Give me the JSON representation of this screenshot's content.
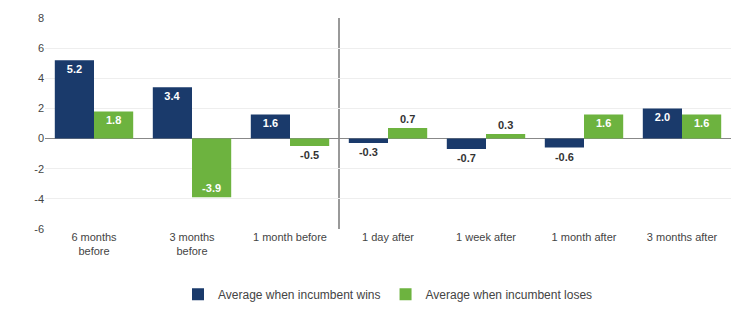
{
  "chart_data": {
    "type": "bar",
    "categories": [
      "6 months\nbefore",
      "3 months\nbefore",
      "1 month before",
      "1 day after",
      "1 week after",
      "1 month after",
      "3 months after"
    ],
    "series": [
      {
        "name": "Average when incumbent wins",
        "color": "#1a3a6b",
        "values": [
          5.2,
          3.4,
          1.6,
          -0.3,
          -0.7,
          -0.6,
          2.0
        ],
        "value_labels": [
          "5.2",
          "3.4",
          "1.6",
          "-0.3",
          "-0.7",
          "-0.6",
          "2.0"
        ]
      },
      {
        "name": "Average when incumbent loses",
        "color": "#6db33f",
        "values": [
          1.8,
          -3.9,
          -0.5,
          0.7,
          0.3,
          1.6,
          1.6
        ]
      }
    ],
    "ylim": [
      -6,
      8
    ],
    "yticks": [
      -6,
      -4,
      -2,
      0,
      2,
      4,
      6,
      8
    ],
    "grid": true,
    "legend": "bottom",
    "data_labels": true
  }
}
